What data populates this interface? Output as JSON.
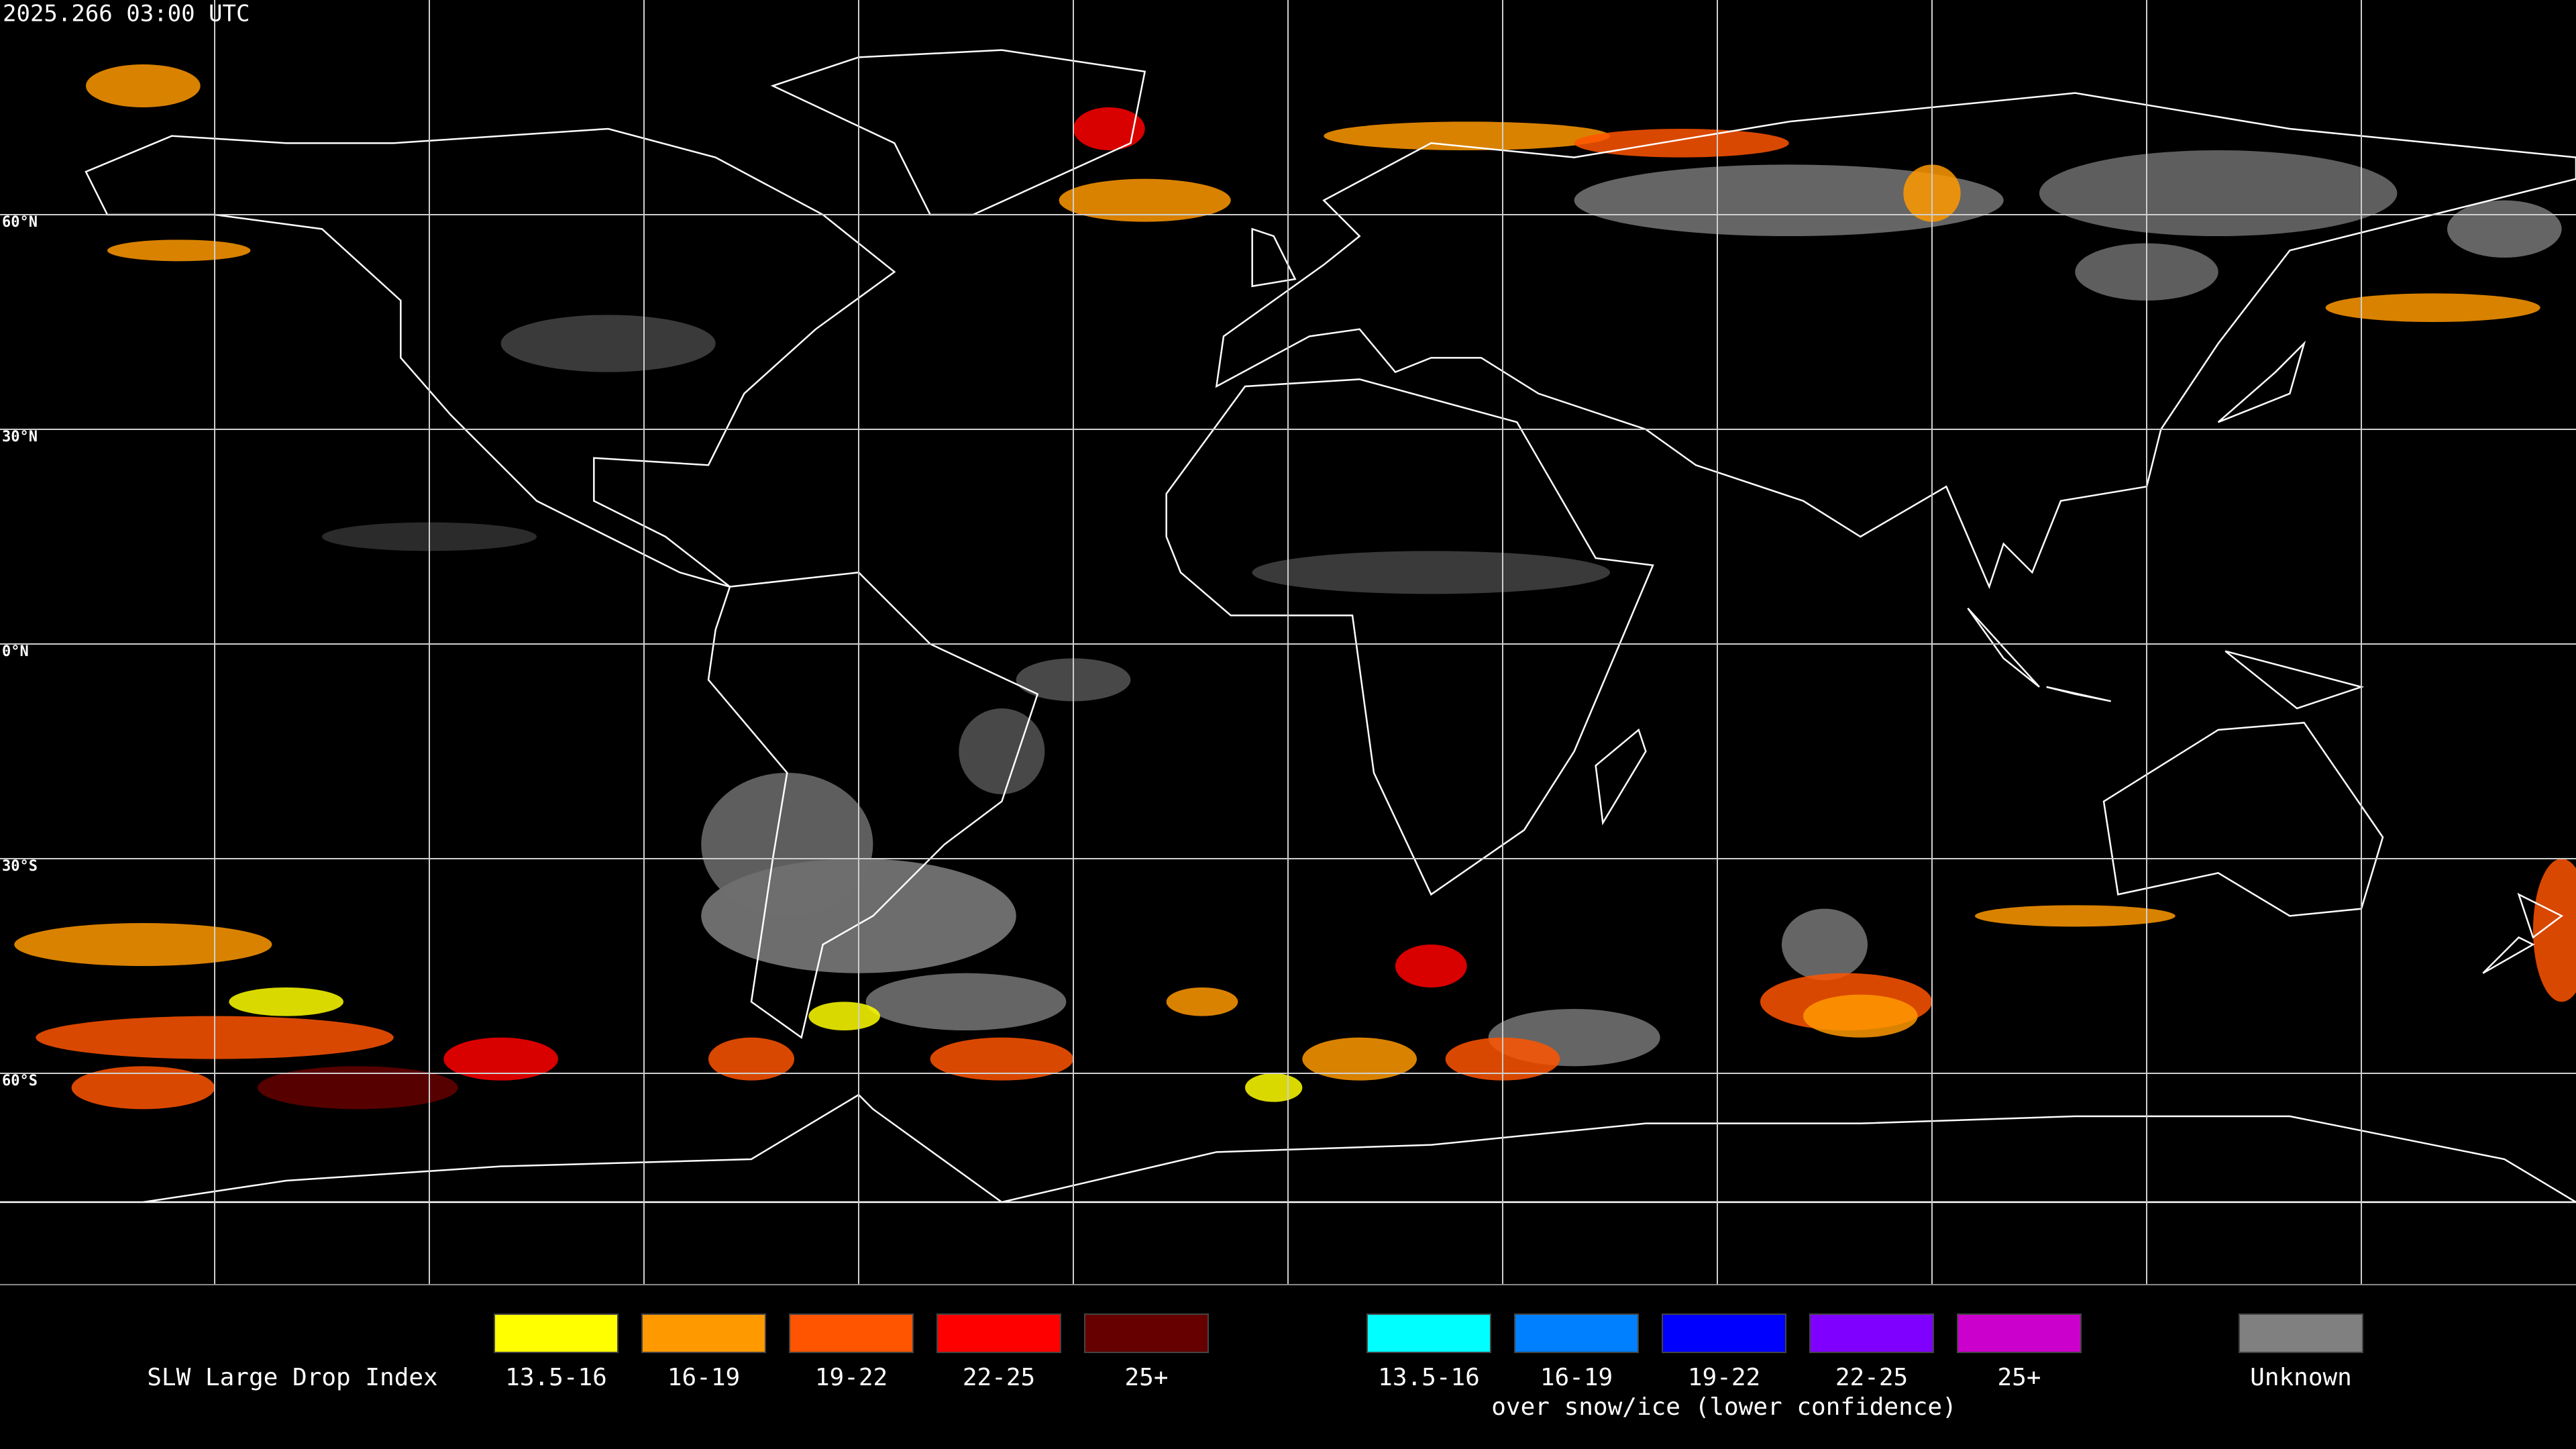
{
  "timestamp": "2025.266 03:00 UTC",
  "map": {
    "latitude_labels": [
      "60°N",
      "30°N",
      "0°N",
      "30°S",
      "60°S"
    ]
  },
  "legend": {
    "title": "SLW Large Drop Index",
    "groups": [
      {
        "items": [
          {
            "label": "13.5-16",
            "color": "#ffff00"
          },
          {
            "label": "16-19",
            "color": "#ff9900"
          },
          {
            "label": "19-22",
            "color": "#ff5500"
          },
          {
            "label": "22-25",
            "color": "#ff0000"
          },
          {
            "label": "25+",
            "color": "#660000"
          }
        ]
      },
      {
        "items": [
          {
            "label": "13.5-16",
            "color": "#00ffff"
          },
          {
            "label": "16-19",
            "color": "#0080ff"
          },
          {
            "label": "19-22",
            "color": "#0000ff"
          },
          {
            "label": "22-25",
            "color": "#8000ff"
          },
          {
            "label": "25+",
            "color": "#cc00cc"
          }
        ],
        "caption": "over snow/ice (lower confidence)"
      },
      {
        "items": [
          {
            "label": "Unknown",
            "color": "#808080"
          }
        ]
      }
    ]
  }
}
